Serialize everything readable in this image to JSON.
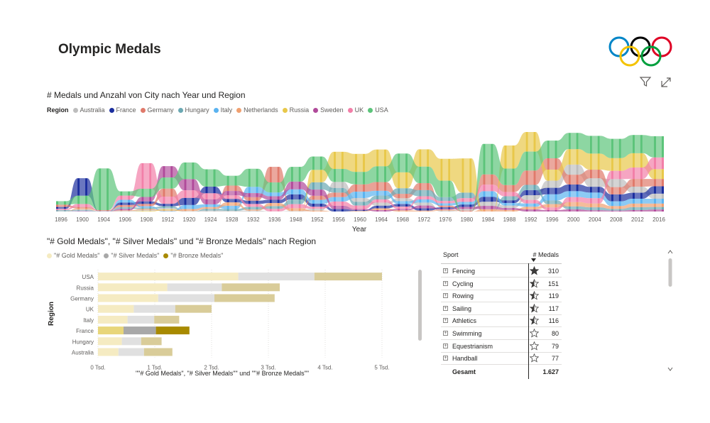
{
  "page": {
    "title": "Olympic Medals"
  },
  "colors": {
    "Australia": "#bdbdbd",
    "France": "#1b2e9e",
    "Germany": "#e07a6b",
    "Hungary": "#6ba8b3",
    "Italy": "#5bb3f0",
    "Netherlands": "#f0a070",
    "Russia": "#e8c84a",
    "Sweden": "#b04a9a",
    "UK": "#f27fa8",
    "USA": "#5cc47a",
    "gold": "#f5ebc2",
    "silver": "#e0e0e0",
    "bronze": "#d9cc99",
    "highlight_gold": "#e8d67a",
    "highlight_silver": "#a8a8a8",
    "highlight_bronze": "#a88a00"
  },
  "chart_data": [
    {
      "type": "area",
      "title": "# Medals und Anzahl von City nach Year und Region",
      "xlabel": "Year",
      "legend_title": "Region",
      "legend": [
        "Australia",
        "France",
        "Germany",
        "Hungary",
        "Italy",
        "Netherlands",
        "Russia",
        "Sweden",
        "UK",
        "USA"
      ],
      "x": [
        "1896",
        "1900",
        "1904",
        "1906",
        "1908",
        "1912",
        "1920",
        "1924",
        "1928",
        "1932",
        "1936",
        "1948",
        "1952",
        "1956",
        "1960",
        "1964",
        "1968",
        "1972",
        "1976",
        "1980",
        "1984",
        "1988",
        "1992",
        "1996",
        "2000",
        "2004",
        "2008",
        "2012",
        "2016"
      ],
      "series": [
        {
          "name": "Australia",
          "values": [
            2,
            5,
            0,
            3,
            5,
            8,
            3,
            6,
            4,
            5,
            1,
            3,
            11,
            35,
            22,
            18,
            17,
            17,
            5,
            9,
            24,
            14,
            27,
            41,
            58,
            49,
            46,
            35,
            29
          ]
        },
        {
          "name": "France",
          "values": [
            11,
            100,
            0,
            14,
            15,
            14,
            41,
            38,
            20,
            19,
            19,
            29,
            18,
            14,
            5,
            15,
            15,
            13,
            9,
            14,
            28,
            16,
            29,
            37,
            38,
            33,
            40,
            34,
            42
          ]
        },
        {
          "name": "Germany",
          "values": [
            13,
            8,
            4,
            12,
            13,
            46,
            0,
            0,
            31,
            20,
            89,
            0,
            24,
            26,
            42,
            50,
            25,
            40,
            10,
            5,
            59,
            40,
            82,
            65,
            56,
            49,
            41,
            44,
            42
          ]
        },
        {
          "name": "Hungary",
          "values": [
            6,
            4,
            2,
            10,
            8,
            10,
            0,
            9,
            10,
            16,
            16,
            27,
            42,
            26,
            21,
            22,
            32,
            35,
            22,
            32,
            0,
            23,
            30,
            21,
            17,
            17,
            10,
            17,
            15
          ]
        },
        {
          "name": "Italy",
          "values": [
            0,
            1,
            0,
            16,
            8,
            3,
            23,
            16,
            19,
            36,
            22,
            29,
            21,
            25,
            36,
            27,
            16,
            18,
            13,
            15,
            32,
            14,
            19,
            35,
            34,
            32,
            27,
            28,
            28
          ]
        },
        {
          "name": "Netherlands",
          "values": [
            0,
            6,
            0,
            4,
            6,
            4,
            11,
            10,
            19,
            6,
            17,
            16,
            5,
            0,
            3,
            10,
            7,
            5,
            5,
            0,
            13,
            9,
            15,
            19,
            25,
            22,
            16,
            20,
            19
          ]
        },
        {
          "name": "Russia",
          "values": [
            0,
            0,
            0,
            0,
            3,
            5,
            0,
            0,
            0,
            0,
            0,
            0,
            71,
            98,
            103,
            96,
            91,
            99,
            125,
            195,
            0,
            132,
            112,
            63,
            88,
            92,
            73,
            82,
            56
          ]
        },
        {
          "name": "Sweden",
          "values": [
            0,
            2,
            0,
            8,
            25,
            65,
            64,
            29,
            25,
            23,
            20,
            44,
            35,
            19,
            6,
            8,
            8,
            16,
            5,
            12,
            19,
            11,
            12,
            8,
            12,
            7,
            5,
            8,
            11
          ]
        },
        {
          "name": "UK",
          "values": [
            7,
            17,
            2,
            24,
            146,
            41,
            43,
            34,
            20,
            16,
            14,
            23,
            11,
            24,
            20,
            18,
            13,
            18,
            13,
            21,
            37,
            24,
            20,
            15,
            28,
            30,
            47,
            65,
            67
          ]
        },
        {
          "name": "USA",
          "values": [
            20,
            47,
            238,
            24,
            47,
            63,
            95,
            99,
            56,
            103,
            57,
            84,
            76,
            74,
            71,
            90,
            107,
            94,
            94,
            0,
            174,
            94,
            108,
            101,
            93,
            101,
            110,
            104,
            121
          ]
        }
      ]
    },
    {
      "type": "bar",
      "title": "\"# Gold Medals\", \"# Silver Medals\" und \"# Bronze Medals\" nach Region",
      "xlabel": "\"\"# Gold Medals\", \"# Silver Medals\"\" und \"\"# Bronze Medals\"\"",
      "ylabel": "Region",
      "legend": [
        "\"# Gold Medals\"",
        "\"# Silver Medals\"",
        "\"# Bronze Medals\""
      ],
      "categories": [
        "USA",
        "Russia",
        "Germany",
        "UK",
        "Italy",
        "France",
        "Hungary",
        "Australia"
      ],
      "series": [
        {
          "name": "\"# Gold Medals\"",
          "values": [
            2470,
            1220,
            1060,
            630,
            520,
            450,
            420,
            360
          ]
        },
        {
          "name": "\"# Silver Medals\"",
          "values": [
            1340,
            960,
            990,
            730,
            470,
            570,
            340,
            450
          ]
        },
        {
          "name": "\"# Bronze Medals\"",
          "values": [
            1190,
            1020,
            1060,
            640,
            440,
            590,
            360,
            500
          ]
        }
      ],
      "highlight": "France",
      "xticks": [
        "0 Tsd.",
        "1 Tsd.",
        "2 Tsd.",
        "3 Tsd.",
        "4 Tsd.",
        "5 Tsd."
      ],
      "xlim": [
        0,
        5000
      ]
    }
  ],
  "table": {
    "col_sport": "Sport",
    "col_medals": "# Medals",
    "rows": [
      {
        "sport": "Fencing",
        "medals": "310",
        "star": "full"
      },
      {
        "sport": "Cycling",
        "medals": "151",
        "star": "half"
      },
      {
        "sport": "Rowing",
        "medals": "119",
        "star": "half"
      },
      {
        "sport": "Sailing",
        "medals": "117",
        "star": "half"
      },
      {
        "sport": "Athletics",
        "medals": "116",
        "star": "half"
      },
      {
        "sport": "Swimming",
        "medals": "80",
        "star": "empty"
      },
      {
        "sport": "Equestrianism",
        "medals": "79",
        "star": "empty"
      },
      {
        "sport": "Handball",
        "medals": "77",
        "star": "empty"
      }
    ],
    "total_label": "Gesamt",
    "total_value": "1.627",
    "expand_glyph": "+"
  }
}
